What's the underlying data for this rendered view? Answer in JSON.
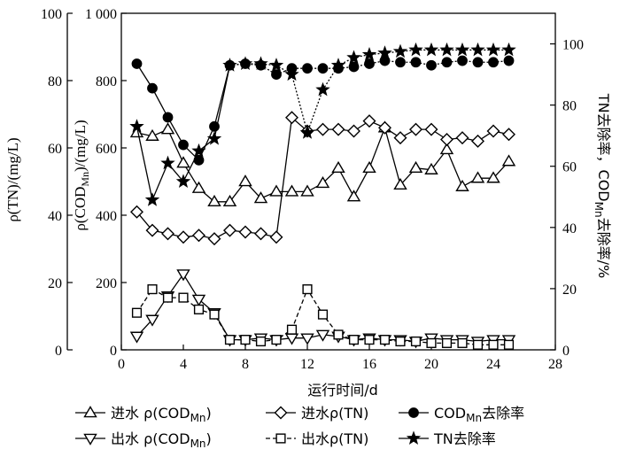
{
  "chart_data": {
    "type": "line",
    "x": [
      1,
      2,
      3,
      4,
      5,
      6,
      7,
      8,
      9,
      10,
      11,
      12,
      13,
      14,
      15,
      16,
      17,
      18,
      19,
      20,
      21,
      22,
      23,
      24,
      25
    ],
    "xlabel": "运行时间/d",
    "xlim": [
      0,
      28
    ],
    "xticks": [
      "0",
      "4",
      "8",
      "12",
      "16",
      "20",
      "24",
      "28"
    ],
    "axes": {
      "tn": {
        "label_pre": "ρ(TN)/(mg/L)",
        "ylim": [
          0,
          100
        ],
        "ticks": [
          "0",
          "20",
          "40",
          "60",
          "80",
          "100"
        ]
      },
      "cod": {
        "label_pre": "ρ(COD",
        "label_sub": "Mn",
        "label_post": ")/(mg/L)",
        "ylim": [
          0,
          1000
        ],
        "ticks": [
          "0",
          "200",
          "400",
          "600",
          "800",
          "1 000"
        ]
      },
      "rate": {
        "label_pre": "TN去除率，COD",
        "label_sub": "Mn",
        "label_post": "去除率/%",
        "ylim": [
          0,
          110
        ],
        "ticks": [
          "0",
          "20",
          "40",
          "60",
          "80",
          "100"
        ]
      }
    },
    "series": [
      {
        "axis": "cod",
        "marker": "triangle-up",
        "line": "solid",
        "legend_pre": "进水 ρ(COD",
        "legend_sub": "Mn",
        "legend_post": ")",
        "values": [
          645,
          635,
          655,
          555,
          480,
          440,
          440,
          500,
          450,
          470,
          470,
          470,
          495,
          540,
          455,
          540,
          660,
          490,
          540,
          535,
          595,
          485,
          510,
          510,
          560
        ]
      },
      {
        "axis": "tn",
        "marker": "diamond",
        "line": "solid",
        "legend_pre": "进水ρ(TN)",
        "legend_sub": "",
        "legend_post": "",
        "values": [
          41,
          35.5,
          34.5,
          33.5,
          34,
          33,
          35.5,
          35,
          34.5,
          33.5,
          69,
          65,
          65.5,
          65.5,
          65,
          68,
          66,
          63,
          65.5,
          65.5,
          62.5,
          63,
          62,
          65,
          64
        ]
      },
      {
        "axis": "rate",
        "marker": "circle",
        "line": "solid-dotted",
        "legend_pre": "COD",
        "legend_sub": "Mn",
        "legend_post": "去除率",
        "values": [
          93.5,
          85.5,
          76,
          67,
          62,
          73,
          93,
          93.5,
          93,
          90,
          92,
          92,
          92,
          92,
          92.5,
          93.5,
          94.5,
          94,
          94,
          93,
          94,
          94.5,
          94,
          94,
          94.5
        ]
      },
      {
        "axis": "cod",
        "marker": "triangle-down",
        "line": "solid",
        "legend_pre": "出水 ρ(COD",
        "legend_sub": "Mn",
        "legend_post": ")",
        "values": [
          40,
          90,
          160,
          225,
          150,
          110,
          30,
          30,
          35,
          30,
          35,
          35,
          45,
          40,
          30,
          35,
          30,
          30,
          25,
          35,
          30,
          30,
          25,
          30,
          30
        ]
      },
      {
        "axis": "tn",
        "marker": "square",
        "line": "dashed",
        "legend_pre": "出水ρ(TN)",
        "legend_sub": "",
        "legend_post": "",
        "values": [
          11,
          18,
          15.5,
          15.5,
          12,
          10.5,
          3,
          3,
          2.5,
          3,
          6,
          18,
          10.5,
          4.5,
          3,
          3,
          3,
          2.5,
          2.5,
          2,
          2,
          2,
          1.5,
          1.5,
          1.5
        ]
      },
      {
        "axis": "rate",
        "marker": "star",
        "line": "solid-dotted",
        "legend_pre": "TN去除率",
        "legend_sub": "",
        "legend_post": "",
        "values": [
          73,
          49,
          61,
          55,
          65,
          69,
          93,
          93.5,
          93.5,
          93,
          90,
          71,
          85,
          93,
          95.5,
          96.5,
          97,
          97.5,
          98,
          98,
          98,
          98,
          98,
          98,
          98
        ]
      }
    ],
    "legend_position": "bottom"
  }
}
